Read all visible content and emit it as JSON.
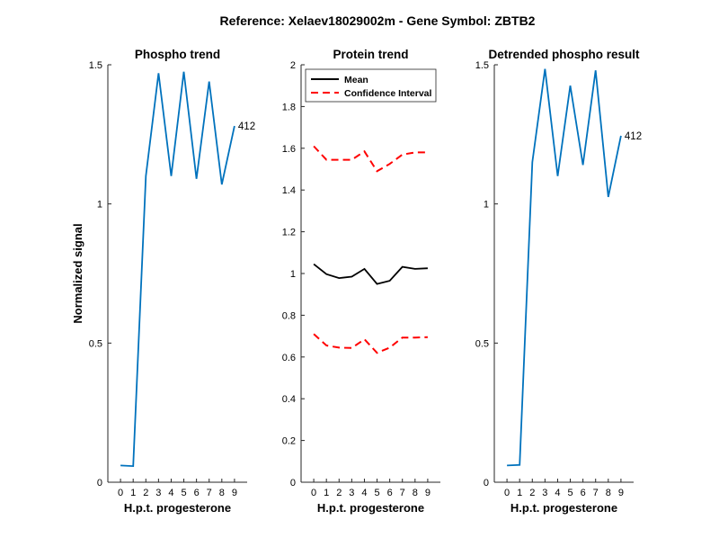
{
  "figure_title": "Reference:  Xelaev18029002m - Gene Symbol:  ZBTB2",
  "colors": {
    "blue": "#0072BD",
    "red": "#FF0000",
    "black": "#000000"
  },
  "chart_data": [
    {
      "type": "line",
      "title": "Phospho trend",
      "xlabel": "H.p.t. progesterone",
      "ylabel": "Normalized signal",
      "xlim": [
        -1,
        10
      ],
      "ylim": [
        0,
        1.5
      ],
      "x_ticks": [
        0,
        1,
        2,
        3,
        4,
        5,
        6,
        7,
        8,
        9
      ],
      "y_ticks": [
        0,
        0.5,
        1,
        1.5
      ],
      "y_tick_labels": [
        "0",
        "0.5",
        "1",
        "1.5"
      ],
      "grid": false,
      "series": [
        {
          "x": [
            0,
            1,
            2,
            3,
            4,
            5,
            6,
            7,
            8,
            9
          ],
          "values": [
            0.06,
            0.058,
            1.1,
            1.47,
            1.1,
            1.475,
            1.09,
            1.44,
            1.07,
            1.28
          ],
          "color": "#0072BD",
          "style": "solid",
          "end_label": "412"
        }
      ]
    },
    {
      "type": "line",
      "title": "Protein trend",
      "xlabel": "H.p.t. progesterone",
      "ylabel": "",
      "xlim": [
        -1,
        10
      ],
      "ylim": [
        0,
        2
      ],
      "x_ticks": [
        0,
        1,
        2,
        3,
        4,
        5,
        6,
        7,
        8,
        9
      ],
      "y_ticks": [
        0,
        0.2,
        0.4,
        0.6,
        0.8,
        1,
        1.2,
        1.4,
        1.6,
        1.8,
        2
      ],
      "y_tick_labels": [
        "0",
        "0.2",
        "0.4",
        "0.6",
        "0.8",
        "1",
        "1.2",
        "1.4",
        "1.6",
        "1.8",
        "2"
      ],
      "grid": false,
      "legend_position": "top-left",
      "series": [
        {
          "name": "Mean",
          "x": [
            0,
            1,
            2,
            3,
            4,
            5,
            6,
            7,
            8,
            9
          ],
          "values": [
            1.045,
            0.997,
            0.978,
            0.985,
            1.022,
            0.95,
            0.965,
            1.032,
            1.022,
            1.025
          ],
          "color": "#000000",
          "style": "solid"
        },
        {
          "name": "Confidence Interval",
          "x": [
            0,
            1,
            2,
            3,
            4,
            5,
            6,
            7,
            8,
            9
          ],
          "values": [
            1.61,
            1.545,
            1.545,
            1.545,
            1.585,
            1.49,
            1.525,
            1.57,
            1.58,
            1.58
          ],
          "color": "#FF0000",
          "style": "dashed"
        },
        {
          "name": "",
          "x": [
            0,
            1,
            2,
            3,
            4,
            5,
            6,
            7,
            8,
            9
          ],
          "values": [
            0.71,
            0.655,
            0.645,
            0.643,
            0.685,
            0.62,
            0.645,
            0.693,
            0.693,
            0.695
          ],
          "color": "#FF0000",
          "style": "dashed"
        }
      ]
    },
    {
      "type": "line",
      "title": "Detrended phospho result",
      "xlabel": "H.p.t. progesterone",
      "ylabel": "",
      "xlim": [
        -1,
        10
      ],
      "ylim": [
        0,
        1.5
      ],
      "x_ticks": [
        0,
        1,
        2,
        3,
        4,
        5,
        6,
        7,
        8,
        9
      ],
      "y_ticks": [
        0,
        0.5,
        1,
        1.5
      ],
      "y_tick_labels": [
        "0",
        "0.5",
        "1",
        "1.5"
      ],
      "grid": false,
      "series": [
        {
          "x": [
            0,
            1,
            2,
            3,
            4,
            5,
            6,
            7,
            8,
            9
          ],
          "values": [
            0.06,
            0.062,
            1.15,
            1.485,
            1.1,
            1.425,
            1.14,
            1.48,
            1.025,
            1.245
          ],
          "color": "#0072BD",
          "style": "solid",
          "end_label": "412"
        }
      ]
    }
  ]
}
